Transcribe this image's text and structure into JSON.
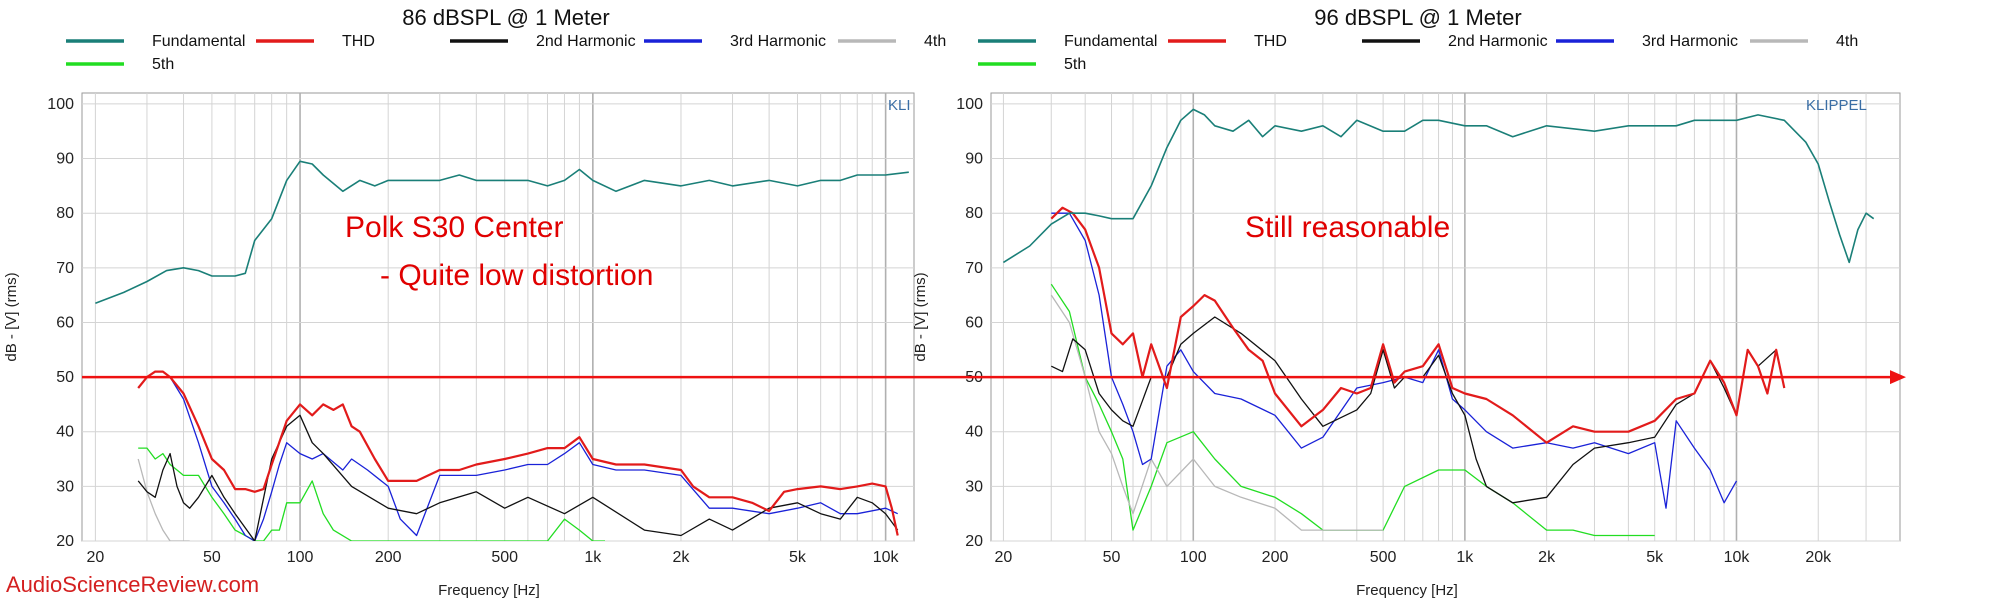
{
  "watermark": "AudioScienceReview.com",
  "colors": {
    "fundamental": "#1a7f78",
    "thd": "#e21b1b",
    "h2": "#111111",
    "h3": "#1a22d8",
    "h4": "#b8b8b8",
    "h5": "#22dd22",
    "ref_line": "#ee1111",
    "grid": "#d4d4d4",
    "annotation": "#e00000"
  },
  "chart_data": [
    {
      "type": "line",
      "title": "86 dBSPL @ 1 Meter",
      "xlabel": "Frequency [Hz]",
      "ylabel": "dB - [V] (rms)",
      "x_scale": "log",
      "xlim": [
        18,
        12500
      ],
      "ylim": [
        20,
        102
      ],
      "x_ticks": [
        20,
        50,
        100,
        200,
        500,
        1000,
        2000,
        5000,
        10000
      ],
      "x_tick_labels": [
        "20",
        "50",
        "100",
        "200",
        "500",
        "1k",
        "2k",
        "5k",
        "10k"
      ],
      "y_ticks": [
        20,
        30,
        40,
        50,
        60,
        70,
        80,
        90,
        100
      ],
      "y_tick_labels": [
        "20",
        "30",
        "40",
        "50",
        "60",
        "70",
        "80",
        "90",
        "100"
      ],
      "grid": true,
      "legend_position": "top",
      "badge": "KLI",
      "annotations": [
        "Polk S30 Center",
        "- Quite low distortion"
      ],
      "reference_line_y": 50,
      "series": [
        {
          "name": "Fundamental",
          "x": [
            20,
            25,
            30,
            35,
            40,
            45,
            50,
            55,
            60,
            65,
            70,
            80,
            90,
            100,
            110,
            120,
            140,
            160,
            180,
            200,
            250,
            300,
            350,
            400,
            500,
            600,
            700,
            800,
            900,
            1000,
            1200,
            1500,
            2000,
            2500,
            3000,
            4000,
            5000,
            6000,
            7000,
            8000,
            10000,
            12000
          ],
          "y": [
            63.5,
            65.5,
            67.5,
            69.5,
            70,
            69.5,
            68.5,
            68.5,
            68.5,
            69,
            75,
            79,
            86,
            89.5,
            89,
            87,
            84,
            86,
            85,
            86,
            86,
            86,
            87,
            86,
            86,
            86,
            85,
            86,
            88,
            86,
            84,
            86,
            85,
            86,
            85,
            86,
            85,
            86,
            86,
            87,
            87,
            87.5
          ]
        },
        {
          "name": "THD",
          "x": [
            28,
            30,
            32,
            34,
            36,
            40,
            45,
            50,
            55,
            60,
            65,
            70,
            75,
            80,
            90,
            100,
            110,
            120,
            130,
            140,
            150,
            160,
            180,
            200,
            250,
            300,
            350,
            400,
            500,
            600,
            700,
            800,
            900,
            1000,
            1200,
            1500,
            2000,
            2200,
            2500,
            3000,
            3500,
            4000,
            4500,
            5000,
            6000,
            7000,
            8000,
            9000,
            10000,
            10500,
            11000
          ],
          "y": [
            48,
            50,
            51,
            51,
            50,
            47,
            41,
            35,
            33,
            29.5,
            29.5,
            29,
            29.5,
            34,
            42,
            45,
            43,
            45,
            44,
            45,
            41,
            40,
            35,
            31,
            31,
            33,
            33,
            34,
            35,
            36,
            37,
            37,
            39,
            35,
            34,
            34,
            33,
            30,
            28,
            28,
            27,
            25.5,
            29,
            29.5,
            30,
            29.5,
            30,
            30.5,
            30,
            26,
            21
          ]
        },
        {
          "name": "2nd Harmonic",
          "x": [
            28,
            30,
            32,
            34,
            36,
            38,
            40,
            42,
            45,
            50,
            55,
            60,
            70,
            80,
            90,
            100,
            110,
            120,
            150,
            200,
            250,
            300,
            400,
            500,
            600,
            800,
            1000,
            1500,
            2000,
            2500,
            3000,
            4000,
            5000,
            6000,
            7000,
            8000,
            9000,
            10000,
            11000
          ],
          "y": [
            31,
            29,
            28,
            33,
            36,
            30,
            27,
            26,
            28,
            32,
            28,
            25,
            20,
            35,
            41,
            43,
            38,
            36,
            30,
            26,
            25,
            27,
            29,
            26,
            28,
            25,
            28,
            22,
            21,
            24,
            22,
            26,
            27,
            25,
            24,
            28,
            27,
            25,
            22
          ]
        },
        {
          "name": "3rd Harmonic",
          "x": [
            28,
            30,
            32,
            34,
            36,
            40,
            45,
            50,
            55,
            60,
            65,
            70,
            75,
            80,
            85,
            90,
            100,
            110,
            120,
            140,
            150,
            170,
            200,
            220,
            250,
            300,
            400,
            500,
            600,
            700,
            800,
            900,
            1000,
            1200,
            1500,
            2000,
            2500,
            3000,
            4000,
            5000,
            6000,
            7000,
            8000,
            10000,
            11000
          ],
          "y": [
            48,
            50,
            51,
            51,
            50,
            46,
            38,
            30,
            27,
            24,
            21,
            20,
            24,
            29,
            34,
            38,
            36,
            35,
            36,
            33,
            35,
            33,
            30,
            24,
            21,
            32,
            32,
            33,
            34,
            34,
            36,
            38,
            34,
            33,
            33,
            32,
            26,
            26,
            25,
            26,
            27,
            25,
            25,
            26,
            25
          ]
        },
        {
          "name": "4th",
          "x": [
            28,
            30,
            32,
            34,
            36,
            38,
            40,
            42
          ],
          "y": [
            35,
            29,
            25,
            22,
            20,
            20,
            20,
            20
          ]
        },
        {
          "name": "5th",
          "x": [
            28,
            30,
            32,
            34,
            36,
            38,
            40,
            45,
            50,
            55,
            60,
            65,
            70,
            75,
            80,
            85,
            90,
            100,
            110,
            120,
            130,
            150,
            200,
            250,
            300,
            400,
            500,
            600,
            700,
            800,
            900,
            1000,
            1100
          ],
          "y": [
            37,
            37,
            35,
            36,
            34,
            33,
            32,
            32,
            28,
            25,
            22,
            21,
            20,
            20,
            22,
            22,
            27,
            27,
            31,
            25,
            22,
            20,
            20,
            20,
            20,
            20,
            20,
            20,
            20,
            24,
            22,
            20,
            20
          ]
        }
      ]
    },
    {
      "type": "line",
      "title": "96 dBSPL @ 1 Meter",
      "xlabel": "Frequency [Hz]",
      "ylabel": "dB - [V] (rms)",
      "x_scale": "log",
      "xlim": [
        18,
        40000
      ],
      "ylim": [
        20,
        102
      ],
      "x_ticks": [
        20,
        50,
        100,
        200,
        500,
        1000,
        2000,
        5000,
        10000,
        20000
      ],
      "x_tick_labels": [
        "20",
        "50",
        "100",
        "200",
        "500",
        "1k",
        "2k",
        "5k",
        "10k",
        "20k"
      ],
      "y_ticks": [
        20,
        30,
        40,
        50,
        60,
        70,
        80,
        90,
        100
      ],
      "y_tick_labels": [
        "20",
        "30",
        "40",
        "50",
        "60",
        "70",
        "80",
        "90",
        "100"
      ],
      "grid": true,
      "legend_position": "top",
      "badge": "KLIPPEL",
      "annotations": [
        "Still reasonable"
      ],
      "reference_line_y": 50,
      "series": [
        {
          "name": "Fundamental",
          "x": [
            20,
            25,
            30,
            35,
            40,
            45,
            50,
            55,
            60,
            70,
            80,
            90,
            100,
            110,
            120,
            140,
            160,
            180,
            200,
            250,
            300,
            350,
            400,
            500,
            600,
            700,
            800,
            1000,
            1200,
            1500,
            2000,
            3000,
            4000,
            5000,
            6000,
            7000,
            8000,
            10000,
            12000,
            15000,
            18000,
            20000,
            22000,
            24000,
            26000,
            28000,
            30000,
            32000
          ],
          "y": [
            71,
            74,
            78,
            80,
            80,
            79.5,
            79,
            79,
            79,
            85,
            92,
            97,
            99,
            98,
            96,
            95,
            97,
            94,
            96,
            95,
            96,
            94,
            97,
            95,
            95,
            97,
            97,
            96,
            96,
            94,
            96,
            95,
            96,
            96,
            96,
            97,
            97,
            97,
            98,
            97,
            93,
            89,
            82,
            76,
            71,
            77,
            80,
            79
          ]
        },
        {
          "name": "THD",
          "x": [
            30,
            33,
            36,
            40,
            45,
            50,
            55,
            60,
            65,
            70,
            80,
            90,
            100,
            110,
            120,
            140,
            160,
            180,
            200,
            250,
            300,
            350,
            400,
            450,
            500,
            550,
            600,
            700,
            800,
            900,
            1000,
            1200,
            1500,
            2000,
            2500,
            3000,
            4000,
            5000,
            6000,
            7000,
            8000,
            9000,
            10000,
            11000,
            12000,
            13000,
            14000,
            15000
          ],
          "y": [
            79,
            81,
            80,
            77,
            70,
            58,
            56,
            58,
            50,
            56,
            48,
            61,
            63,
            65,
            64,
            59,
            55,
            53,
            47,
            41,
            44,
            48,
            47,
            48,
            56,
            49,
            51,
            52,
            56,
            48,
            47,
            46,
            43,
            38,
            41,
            40,
            40,
            42,
            46,
            47,
            53,
            49,
            43,
            55,
            52,
            47,
            55,
            48
          ]
        },
        {
          "name": "2nd Harmonic",
          "x": [
            30,
            33,
            36,
            40,
            45,
            50,
            55,
            60,
            70,
            80,
            90,
            100,
            120,
            150,
            200,
            250,
            300,
            400,
            450,
            500,
            550,
            600,
            700,
            800,
            900,
            1000,
            1100,
            1200,
            1500,
            2000,
            2500,
            3000,
            4000,
            5000,
            6000,
            7000,
            8000,
            9000,
            10000,
            11000,
            12000,
            14000,
            15000
          ],
          "y": [
            52,
            51,
            57,
            55,
            47,
            44,
            42,
            41,
            50,
            50,
            56,
            58,
            61,
            58,
            53,
            46,
            41,
            44,
            47,
            55,
            48,
            50,
            50,
            54,
            47,
            43,
            35,
            30,
            27,
            28,
            34,
            37,
            38,
            39,
            45,
            47,
            53,
            48,
            43,
            55,
            52,
            55,
            48
          ]
        },
        {
          "name": "3rd Harmonic",
          "x": [
            30,
            35,
            40,
            45,
            50,
            55,
            60,
            65,
            70,
            80,
            90,
            100,
            120,
            150,
            200,
            250,
            300,
            400,
            500,
            600,
            700,
            800,
            900,
            1000,
            1200,
            1500,
            2000,
            2500,
            3000,
            4000,
            5000,
            5500,
            6000,
            7000,
            8000,
            9000,
            10000
          ],
          "y": [
            80,
            80,
            75,
            65,
            50,
            45,
            40,
            34,
            35,
            52,
            55,
            51,
            47,
            46,
            43,
            37,
            39,
            48,
            49,
            50,
            49,
            55,
            46,
            44,
            40,
            37,
            38,
            37,
            38,
            36,
            38,
            26,
            42,
            37,
            33,
            27,
            31
          ]
        },
        {
          "name": "4th",
          "x": [
            30,
            35,
            40,
            45,
            50,
            55,
            60,
            70,
            80,
            100,
            120,
            150,
            200,
            250,
            300,
            400,
            450,
            500
          ],
          "y": [
            65,
            60,
            50,
            40,
            36,
            30,
            25,
            35,
            30,
            35,
            30,
            28,
            26,
            22,
            22,
            22,
            22,
            22
          ]
        },
        {
          "name": "5th",
          "x": [
            30,
            35,
            40,
            45,
            50,
            55,
            60,
            70,
            80,
            100,
            120,
            150,
            200,
            250,
            300,
            400,
            500,
            600,
            800,
            1000,
            1200,
            1500,
            2000,
            2500,
            3000,
            5000
          ],
          "y": [
            67,
            62,
            50,
            45,
            40,
            35,
            22,
            30,
            38,
            40,
            35,
            30,
            28,
            25,
            22,
            22,
            22,
            30,
            33,
            33,
            30,
            27,
            22,
            22,
            21,
            21
          ]
        }
      ]
    }
  ]
}
